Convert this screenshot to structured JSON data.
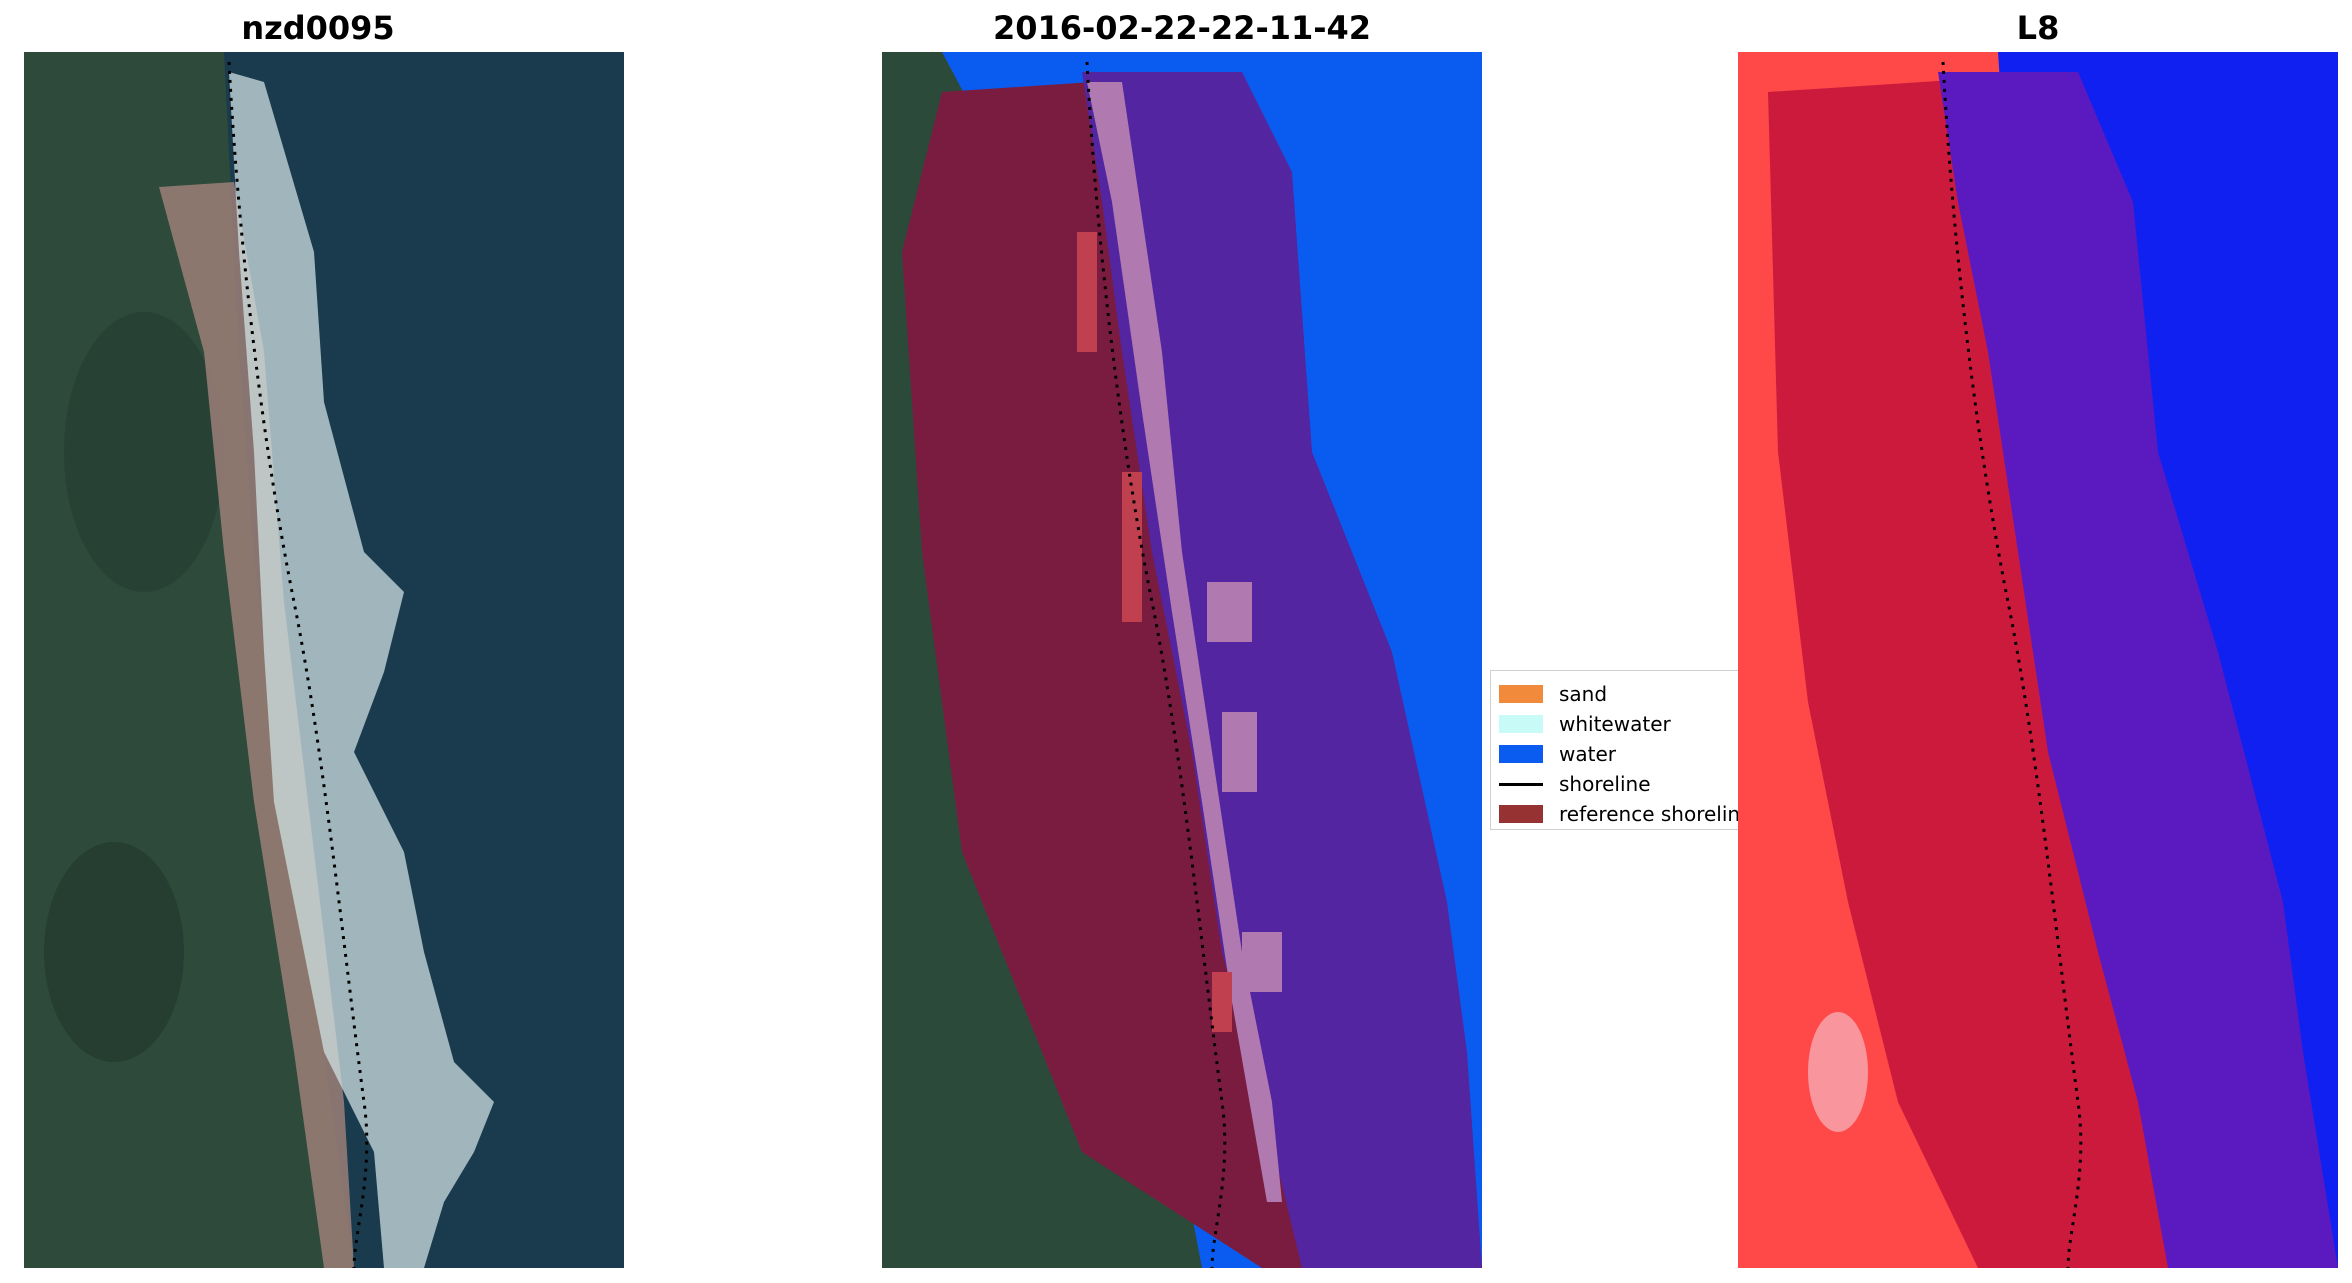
{
  "titles": {
    "left": "nzd0095",
    "middle": "2016-02-22-22-11-42",
    "right": "L8"
  },
  "legend": {
    "items": [
      {
        "label": "sand",
        "color": "#f28a3c",
        "kind": "patch"
      },
      {
        "label": "whitewater",
        "color": "#c8fbf8",
        "kind": "patch"
      },
      {
        "label": "water",
        "color": "#0a5cf0",
        "kind": "patch"
      },
      {
        "label": "shoreline",
        "color": "#000000",
        "kind": "line"
      },
      {
        "label": "reference shoreline",
        "color": "#963232",
        "kind": "patch"
      }
    ]
  },
  "colors": {
    "land": "#2c4a3c",
    "ocean": "#173c52",
    "water_class": "#0a5cf0",
    "buffer_land": "#7a1c40",
    "buffer_water": "#5325a0",
    "whitewater_overlay": "#b07ab0",
    "index_land": "#ff4040",
    "index_buffer_land": "#cc1a3c",
    "index_water": "#1020f0",
    "index_buffer_water": "#5a1ac0"
  }
}
